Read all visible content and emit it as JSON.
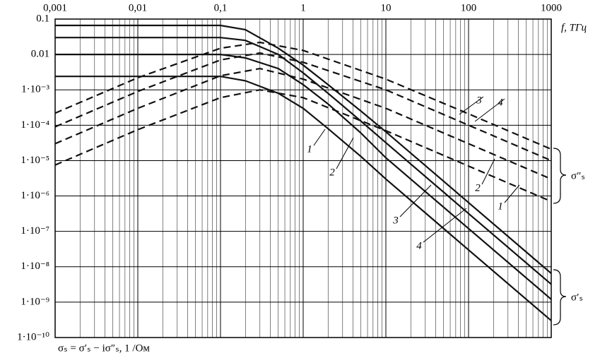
{
  "chart_data": {
    "type": "line",
    "x_label": "f, ТГц",
    "y_label": "σₛ = σ′ₛ − iσ″ₛ, 1 /Ом",
    "log_x": true,
    "log_y": true,
    "grid": true,
    "minor_grid": true,
    "color": "#111111",
    "xlim": [
      0.001,
      1000
    ],
    "ylim": [
      1e-10,
      0.1
    ],
    "xticks": [
      {
        "value": 0.001,
        "label": "0,001"
      },
      {
        "value": 0.01,
        "label": "0,01"
      },
      {
        "value": 0.1,
        "label": "0,1"
      },
      1,
      10,
      100,
      1000
    ],
    "yticks": [
      {
        "value": 1e-10,
        "label": "1·10⁻¹⁰"
      },
      {
        "value": 1e-09,
        "label": "1·10⁻⁹"
      },
      {
        "value": 1e-08,
        "label": "1·10⁻⁸"
      },
      {
        "value": 1e-07,
        "label": "1·10⁻⁷"
      },
      {
        "value": 1e-06,
        "label": "1·10⁻⁶"
      },
      {
        "value": 1e-05,
        "label": "1·10⁻⁵"
      },
      {
        "value": 0.0001,
        "label": "1·10⁻⁴"
      },
      {
        "value": 0.001,
        "label": "1·10⁻³"
      },
      0.01,
      0.1
    ],
    "series": [
      {
        "name": "1",
        "dash": false,
        "x": [
          0.001,
          0.01,
          0.1,
          0.2,
          0.5,
          1,
          2,
          5,
          10,
          100,
          1000
        ],
        "values": [
          0.0024,
          0.0024,
          0.0024,
          0.0018,
          0.0008,
          0.0003,
          8e-05,
          1.3e-05,
          3e-06,
          3e-08,
          3e-10
        ]
      },
      {
        "name": "2",
        "dash": false,
        "x": [
          0.001,
          0.01,
          0.1,
          0.2,
          0.5,
          1,
          2,
          5,
          10,
          100,
          1000
        ],
        "values": [
          0.01,
          0.01,
          0.01,
          0.008,
          0.004,
          0.0014,
          0.0004,
          6e-05,
          1.2e-05,
          1.2e-07,
          1.2e-09
        ]
      },
      {
        "name": "3",
        "dash": false,
        "x": [
          0.001,
          0.01,
          0.1,
          0.2,
          0.5,
          1,
          2,
          5,
          10,
          100,
          1000
        ],
        "values": [
          0.03,
          0.03,
          0.03,
          0.025,
          0.01,
          0.003,
          0.0008,
          0.00013,
          3.2e-05,
          3.2e-07,
          3.2e-09
        ]
      },
      {
        "name": "4",
        "dash": false,
        "x": [
          0.001,
          0.01,
          0.1,
          0.2,
          0.5,
          1,
          2,
          5,
          10,
          100,
          1000
        ],
        "values": [
          0.066,
          0.066,
          0.066,
          0.05,
          0.015,
          0.005,
          0.0014,
          0.00025,
          6.5e-05,
          6.5e-07,
          6.5e-09
        ]
      },
      {
        "name": "1",
        "dash": true,
        "x": [
          0.001,
          0.01,
          0.1,
          0.3,
          1,
          10,
          100,
          1000
        ],
        "values": [
          7.5e-06,
          7.5e-05,
          0.0006,
          0.001,
          0.0006,
          7e-05,
          7e-06,
          7e-07
        ]
      },
      {
        "name": "2",
        "dash": true,
        "x": [
          0.001,
          0.01,
          0.1,
          0.3,
          1,
          10,
          100,
          1000
        ],
        "values": [
          3e-05,
          0.0003,
          0.0025,
          0.004,
          0.002,
          0.0003,
          3e-05,
          3e-06
        ]
      },
      {
        "name": "3",
        "dash": true,
        "x": [
          0.001,
          0.01,
          0.1,
          0.3,
          1,
          10,
          100,
          1000
        ],
        "values": [
          9e-05,
          0.0009,
          0.007,
          0.011,
          0.006,
          0.001,
          0.0001,
          1e-05
        ]
      },
      {
        "name": "4",
        "dash": true,
        "x": [
          0.001,
          0.01,
          0.1,
          0.3,
          1,
          10,
          100,
          1000
        ],
        "values": [
          0.00022,
          0.0022,
          0.015,
          0.022,
          0.013,
          0.002,
          0.00021,
          2.1e-05
        ]
      }
    ],
    "annotations": [
      "1",
      "2",
      "3",
      "4",
      "2",
      "1",
      "3",
      "4"
    ],
    "group_labels": [
      "σ″ₛ",
      "σ′ₛ"
    ]
  }
}
